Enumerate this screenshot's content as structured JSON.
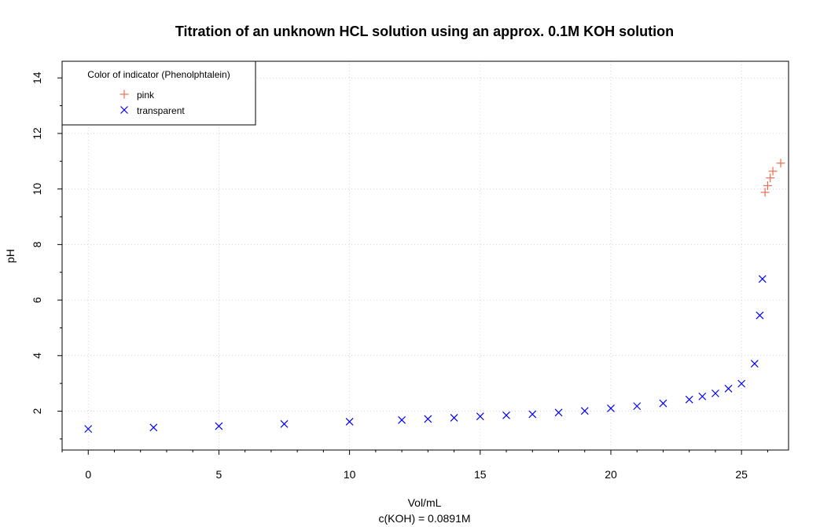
{
  "chart_data": {
    "type": "scatter",
    "title": "Titration of an unknown HCL solution using an approx. 0.1M KOH solution",
    "xlabel": "Vol/mL",
    "xlabel_sub": "c(KOH) = 0.0891M",
    "ylabel": "pH",
    "xlim": [
      -1,
      26.8
    ],
    "ylim": [
      0.6,
      14.6
    ],
    "x_ticks": [
      0,
      5,
      10,
      15,
      20,
      25
    ],
    "y_ticks": [
      2,
      4,
      6,
      8,
      10,
      12,
      14
    ],
    "grid": true,
    "legend": {
      "title": "Color of indicator (Phenolphtalein)",
      "position": "top-left"
    },
    "series": [
      {
        "name": "transparent",
        "marker": "x",
        "color": "#0000ff",
        "points": [
          [
            0,
            1.36
          ],
          [
            2.5,
            1.41
          ],
          [
            5,
            1.46
          ],
          [
            7.5,
            1.54
          ],
          [
            10,
            1.62
          ],
          [
            12,
            1.68
          ],
          [
            13,
            1.72
          ],
          [
            14,
            1.76
          ],
          [
            15,
            1.81
          ],
          [
            16,
            1.85
          ],
          [
            17,
            1.89
          ],
          [
            18,
            1.95
          ],
          [
            19,
            2.01
          ],
          [
            20,
            2.1
          ],
          [
            21,
            2.18
          ],
          [
            22,
            2.28
          ],
          [
            23,
            2.42
          ],
          [
            23.5,
            2.53
          ],
          [
            24,
            2.64
          ],
          [
            24.5,
            2.81
          ],
          [
            25,
            2.99
          ],
          [
            25.5,
            3.71
          ],
          [
            25.7,
            5.45
          ],
          [
            25.8,
            6.76
          ]
        ]
      },
      {
        "name": "pink",
        "marker": "+",
        "color": "#ee6a50",
        "points": [
          [
            25.9,
            9.88
          ],
          [
            26,
            10.12
          ],
          [
            26.1,
            10.4
          ],
          [
            26.2,
            10.64
          ],
          [
            26.5,
            10.93
          ]
        ]
      }
    ]
  }
}
